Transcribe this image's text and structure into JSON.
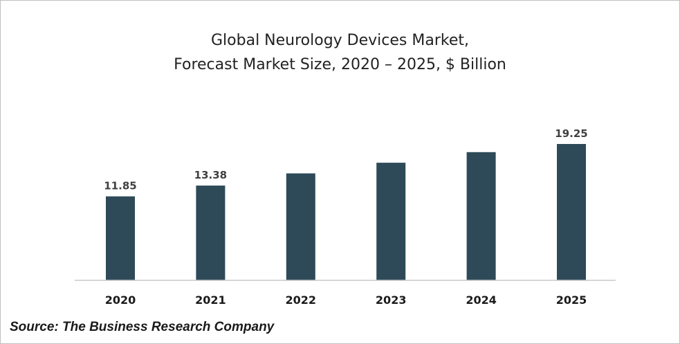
{
  "chart_data": {
    "type": "bar",
    "title": "Global Neurology Devices Market,",
    "subtitle": "Forecast Market Size, 2020 – 2025, $ Billion",
    "categories": [
      "2020",
      "2021",
      "2022",
      "2023",
      "2024",
      "2025"
    ],
    "values": [
      11.85,
      13.38,
      15.1,
      16.6,
      18.1,
      19.25
    ],
    "data_labels": [
      "11.85",
      "13.38",
      "",
      "",
      "",
      "19.25"
    ],
    "xlabel": "",
    "ylabel": "",
    "ylim": [
      0,
      19.25
    ],
    "grid": false,
    "legend": "none",
    "bar_color": "#2e4a58"
  },
  "source": "Source: The Business Research Company"
}
